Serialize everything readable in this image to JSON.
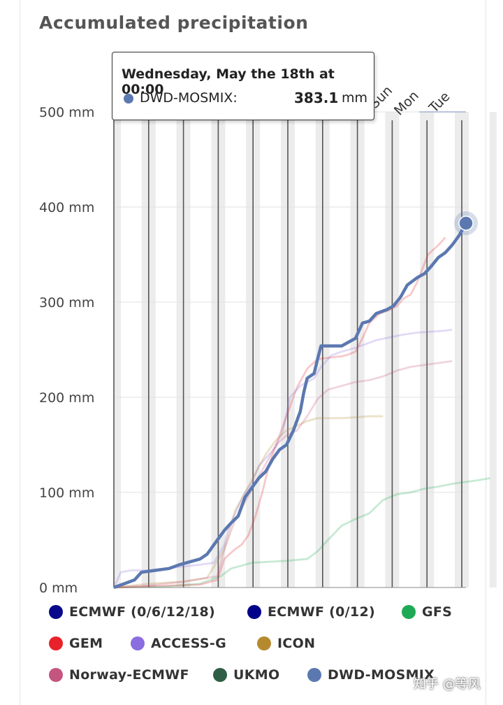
{
  "chart_data": {
    "type": "line",
    "title": "Accumulated precipitation",
    "y_unit": "mm",
    "ylim": [
      0,
      500
    ],
    "yticks": [
      "0 mm",
      "100 mm",
      "200 mm",
      "300 mm",
      "400 mm",
      "500 mm"
    ],
    "x_top_labels": [
      "Sun",
      "Mon",
      "Tue"
    ],
    "grid": true,
    "legend_position": "bottom",
    "series": [
      {
        "name": "ECMWF (0/6/12/18)",
        "color": "#08088a",
        "points": []
      },
      {
        "name": "ECMWF (0/12)",
        "color": "#00008b",
        "points": []
      },
      {
        "name": "GFS",
        "color": "#1eaa55",
        "points": [
          [
            0,
            0
          ],
          [
            1.5,
            1
          ],
          [
            2.5,
            4
          ],
          [
            3.1,
            12
          ],
          [
            3.4,
            20
          ],
          [
            4,
            26
          ],
          [
            5,
            28
          ],
          [
            5.6,
            30
          ],
          [
            5.9,
            38
          ],
          [
            6.2,
            50
          ],
          [
            6.6,
            65
          ],
          [
            7,
            72
          ],
          [
            7.4,
            78
          ],
          [
            7.8,
            92
          ],
          [
            8.2,
            98
          ],
          [
            8.6,
            100
          ],
          [
            9,
            104
          ],
          [
            9.4,
            106
          ],
          [
            9.8,
            109
          ],
          [
            10.2,
            111
          ],
          [
            10.6,
            113
          ],
          [
            10.9,
            115
          ]
        ]
      },
      {
        "name": "GEM",
        "color": "#e8222a",
        "points": [
          [
            0,
            0
          ],
          [
            2.5,
            3
          ],
          [
            3,
            8
          ],
          [
            3.2,
            30
          ],
          [
            3.5,
            40
          ],
          [
            3.7,
            45
          ],
          [
            3.9,
            55
          ],
          [
            4.1,
            75
          ],
          [
            4.3,
            100
          ],
          [
            4.5,
            130
          ],
          [
            4.7,
            150
          ],
          [
            4.9,
            170
          ],
          [
            5.1,
            190
          ],
          [
            5.3,
            210
          ],
          [
            5.6,
            230
          ],
          [
            5.9,
            240
          ],
          [
            6.3,
            242
          ],
          [
            6.6,
            243
          ],
          [
            6.8,
            245
          ],
          [
            7,
            248
          ],
          [
            7.2,
            262
          ],
          [
            7.4,
            278
          ],
          [
            7.7,
            288
          ],
          [
            8.0,
            292
          ],
          [
            8.2,
            296
          ],
          [
            8.4,
            304
          ],
          [
            8.6,
            308
          ],
          [
            8.8,
            322
          ],
          [
            9.1,
            350
          ],
          [
            9.4,
            360
          ],
          [
            9.6,
            368
          ]
        ]
      },
      {
        "name": "ACCESS-G",
        "color": "#8a6de0",
        "points": [
          [
            0,
            0
          ],
          [
            0.2,
            16
          ],
          [
            0.5,
            18
          ],
          [
            1,
            18
          ],
          [
            1.5,
            20
          ],
          [
            2,
            22
          ],
          [
            2.5,
            24
          ],
          [
            2.9,
            26
          ],
          [
            3.2,
            45
          ],
          [
            3.3,
            60
          ],
          [
            3.6,
            85
          ],
          [
            3.8,
            100
          ],
          [
            4.0,
            110
          ],
          [
            4.2,
            128
          ],
          [
            4.5,
            140
          ],
          [
            4.7,
            148
          ],
          [
            4.9,
            165
          ],
          [
            5.1,
            200
          ],
          [
            5.4,
            212
          ],
          [
            5.8,
            220
          ],
          [
            6,
            232
          ],
          [
            6.3,
            244
          ],
          [
            6.6,
            248
          ],
          [
            7,
            252
          ],
          [
            7.3,
            256
          ],
          [
            7.6,
            260
          ],
          [
            8,
            263
          ],
          [
            8.4,
            266
          ],
          [
            8.8,
            268
          ],
          [
            9.2,
            269
          ],
          [
            9.6,
            270
          ],
          [
            9.8,
            271
          ]
        ]
      },
      {
        "name": "ICON",
        "color": "#b5892d",
        "points": [
          [
            0,
            0
          ],
          [
            1,
            4
          ],
          [
            2,
            6
          ],
          [
            2.7,
            10
          ],
          [
            3.2,
            40
          ],
          [
            3.5,
            80
          ],
          [
            3.8,
            100
          ],
          [
            4.1,
            120
          ],
          [
            4.4,
            140
          ],
          [
            4.7,
            155
          ],
          [
            5,
            165
          ],
          [
            5.3,
            170
          ],
          [
            5.6,
            175
          ],
          [
            5.9,
            178
          ],
          [
            6.2,
            178
          ],
          [
            6.6,
            178
          ],
          [
            7,
            179
          ],
          [
            7.4,
            180
          ],
          [
            7.8,
            180
          ]
        ]
      },
      {
        "name": "Norway-ECMWF",
        "color": "#c4557f",
        "points": [
          [
            0,
            0
          ],
          [
            1,
            2
          ],
          [
            2,
            6
          ],
          [
            3,
            12
          ],
          [
            3.2,
            40
          ],
          [
            3.5,
            70
          ],
          [
            3.8,
            90
          ],
          [
            4.1,
            110
          ],
          [
            4.4,
            130
          ],
          [
            4.7,
            150
          ],
          [
            5,
            160
          ],
          [
            5.3,
            165
          ],
          [
            5.6,
            180
          ],
          [
            5.9,
            198
          ],
          [
            6.2,
            208
          ],
          [
            6.6,
            212
          ],
          [
            7,
            216
          ],
          [
            7.4,
            218
          ],
          [
            7.8,
            222
          ],
          [
            8.2,
            228
          ],
          [
            8.6,
            232
          ],
          [
            9,
            234
          ],
          [
            9.4,
            236
          ],
          [
            9.8,
            238
          ]
        ]
      },
      {
        "name": "UKMO",
        "color": "#2e5e45",
        "points": []
      },
      {
        "name": "DWD-MOSMIX",
        "color": "#5b78b0",
        "points": [
          [
            0,
            0
          ],
          [
            0.3,
            4
          ],
          [
            0.6,
            8
          ],
          [
            0.8,
            16
          ],
          [
            1.2,
            18
          ],
          [
            1.6,
            20
          ],
          [
            1.9,
            24
          ],
          [
            2.2,
            27
          ],
          [
            2.5,
            30
          ],
          [
            2.7,
            35
          ],
          [
            2.8,
            40
          ],
          [
            3,
            50
          ],
          [
            3.2,
            60
          ],
          [
            3.4,
            68
          ],
          [
            3.6,
            75
          ],
          [
            3.8,
            95
          ],
          [
            4,
            105
          ],
          [
            4.2,
            115
          ],
          [
            4.4,
            122
          ],
          [
            4.6,
            135
          ],
          [
            4.8,
            145
          ],
          [
            5,
            150
          ],
          [
            5.2,
            165
          ],
          [
            5.4,
            185
          ],
          [
            5.5,
            205
          ],
          [
            5.6,
            220
          ],
          [
            5.8,
            225
          ],
          [
            5.9,
            240
          ],
          [
            6,
            254
          ],
          [
            6.3,
            254
          ],
          [
            6.6,
            254
          ],
          [
            6.8,
            258
          ],
          [
            7,
            262
          ],
          [
            7.2,
            278
          ],
          [
            7.4,
            280
          ],
          [
            7.6,
            288
          ],
          [
            7.9,
            292
          ],
          [
            8.1,
            296
          ],
          [
            8.3,
            305
          ],
          [
            8.5,
            318
          ],
          [
            8.8,
            326
          ],
          [
            9,
            330
          ],
          [
            9.2,
            338
          ],
          [
            9.4,
            347
          ],
          [
            9.6,
            352
          ],
          [
            9.8,
            360
          ],
          [
            10,
            370
          ],
          [
            10.2,
            383
          ]
        ]
      }
    ],
    "tooltip": {
      "title": "Wednesday, May the 18th at 00:00",
      "series": "DWD-MOSMIX:",
      "value": "383.1",
      "unit": "mm"
    }
  },
  "watermark": "知乎 @等风"
}
